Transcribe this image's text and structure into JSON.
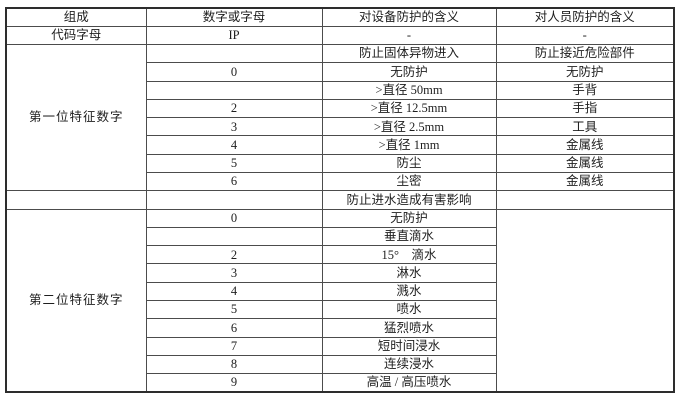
{
  "table": {
    "title_semantic": "IP防护等级代码含义表",
    "border_color": "#4c4c4c",
    "header": {
      "composition": "组成",
      "digit_or_letter": "数字或字母",
      "device_meaning": "对设备防护的含义",
      "person_meaning": "对人员防护的含义"
    },
    "code_row": {
      "label": "代码字母",
      "value": "IP",
      "device": "-",
      "person": "-"
    },
    "section1": {
      "label": "第一位特征数字",
      "intro_device": "防止固体异物进入",
      "intro_person": "防止接近危险部件",
      "rows": [
        {
          "num": "0",
          "device": "无防护",
          "person": "无防护"
        },
        {
          "num": "",
          "device": ">直径 50mm",
          "person": "手背"
        },
        {
          "num": "2",
          "device": ">直径 12.5mm",
          "person": "手指"
        },
        {
          "num": "3",
          "device": ">直径 2.5mm",
          "person": "工具"
        },
        {
          "num": "4",
          "device": ">直径 1mm",
          "person": "金属线"
        },
        {
          "num": "5",
          "device": "防尘",
          "person": "金属线"
        },
        {
          "num": "6",
          "device": "尘密",
          "person": "金属线"
        }
      ]
    },
    "section2": {
      "label": "第二位特征数字",
      "intro_device": "防止进水造成有害影响",
      "intro_person": "",
      "rows": [
        {
          "num": "0",
          "device": "无防护"
        },
        {
          "num": "",
          "device": "垂直滴水"
        },
        {
          "num": "2",
          "device": "15°　滴水"
        },
        {
          "num": "3",
          "device": "淋水"
        },
        {
          "num": "4",
          "device": "溅水"
        },
        {
          "num": "5",
          "device": "喷水"
        },
        {
          "num": "6",
          "device": "猛烈喷水"
        },
        {
          "num": "7",
          "device": "短时间浸水"
        },
        {
          "num": "8",
          "device": "连续浸水"
        },
        {
          "num": "9",
          "device": "高温 / 高压喷水"
        }
      ]
    }
  }
}
